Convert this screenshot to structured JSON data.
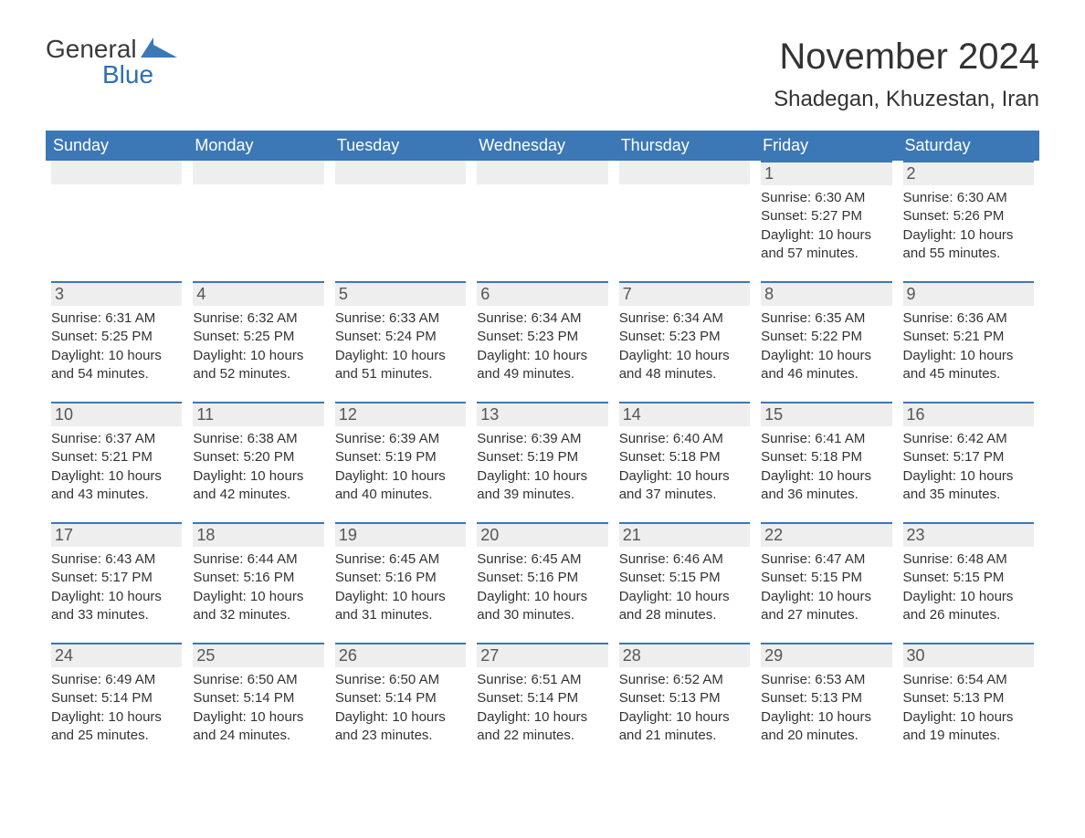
{
  "logo": {
    "general": "General",
    "blue": "Blue",
    "flag_color": "#3b78b5"
  },
  "title": "November 2024",
  "location": "Shadegan, Khuzestan, Iran",
  "day_headers": [
    "Sunday",
    "Monday",
    "Tuesday",
    "Wednesday",
    "Thursday",
    "Friday",
    "Saturday"
  ],
  "style": {
    "header_bg": "#3b78b5",
    "header_text": "#ffffff",
    "daynum_bg": "#eeeeee",
    "daynum_border": "#3b78b5",
    "body_text": "#333333",
    "page_bg": "#ffffff",
    "font_size_title": 40,
    "font_size_location": 24,
    "font_size_dayhead": 18,
    "font_size_daynum": 18,
    "font_size_body": 15
  },
  "weeks": [
    [
      null,
      null,
      null,
      null,
      null,
      {
        "num": "1",
        "sunrise": "Sunrise: 6:30 AM",
        "sunset": "Sunset: 5:27 PM",
        "daylight1": "Daylight: 10 hours",
        "daylight2": "and 57 minutes."
      },
      {
        "num": "2",
        "sunrise": "Sunrise: 6:30 AM",
        "sunset": "Sunset: 5:26 PM",
        "daylight1": "Daylight: 10 hours",
        "daylight2": "and 55 minutes."
      }
    ],
    [
      {
        "num": "3",
        "sunrise": "Sunrise: 6:31 AM",
        "sunset": "Sunset: 5:25 PM",
        "daylight1": "Daylight: 10 hours",
        "daylight2": "and 54 minutes."
      },
      {
        "num": "4",
        "sunrise": "Sunrise: 6:32 AM",
        "sunset": "Sunset: 5:25 PM",
        "daylight1": "Daylight: 10 hours",
        "daylight2": "and 52 minutes."
      },
      {
        "num": "5",
        "sunrise": "Sunrise: 6:33 AM",
        "sunset": "Sunset: 5:24 PM",
        "daylight1": "Daylight: 10 hours",
        "daylight2": "and 51 minutes."
      },
      {
        "num": "6",
        "sunrise": "Sunrise: 6:34 AM",
        "sunset": "Sunset: 5:23 PM",
        "daylight1": "Daylight: 10 hours",
        "daylight2": "and 49 minutes."
      },
      {
        "num": "7",
        "sunrise": "Sunrise: 6:34 AM",
        "sunset": "Sunset: 5:23 PM",
        "daylight1": "Daylight: 10 hours",
        "daylight2": "and 48 minutes."
      },
      {
        "num": "8",
        "sunrise": "Sunrise: 6:35 AM",
        "sunset": "Sunset: 5:22 PM",
        "daylight1": "Daylight: 10 hours",
        "daylight2": "and 46 minutes."
      },
      {
        "num": "9",
        "sunrise": "Sunrise: 6:36 AM",
        "sunset": "Sunset: 5:21 PM",
        "daylight1": "Daylight: 10 hours",
        "daylight2": "and 45 minutes."
      }
    ],
    [
      {
        "num": "10",
        "sunrise": "Sunrise: 6:37 AM",
        "sunset": "Sunset: 5:21 PM",
        "daylight1": "Daylight: 10 hours",
        "daylight2": "and 43 minutes."
      },
      {
        "num": "11",
        "sunrise": "Sunrise: 6:38 AM",
        "sunset": "Sunset: 5:20 PM",
        "daylight1": "Daylight: 10 hours",
        "daylight2": "and 42 minutes."
      },
      {
        "num": "12",
        "sunrise": "Sunrise: 6:39 AM",
        "sunset": "Sunset: 5:19 PM",
        "daylight1": "Daylight: 10 hours",
        "daylight2": "and 40 minutes."
      },
      {
        "num": "13",
        "sunrise": "Sunrise: 6:39 AM",
        "sunset": "Sunset: 5:19 PM",
        "daylight1": "Daylight: 10 hours",
        "daylight2": "and 39 minutes."
      },
      {
        "num": "14",
        "sunrise": "Sunrise: 6:40 AM",
        "sunset": "Sunset: 5:18 PM",
        "daylight1": "Daylight: 10 hours",
        "daylight2": "and 37 minutes."
      },
      {
        "num": "15",
        "sunrise": "Sunrise: 6:41 AM",
        "sunset": "Sunset: 5:18 PM",
        "daylight1": "Daylight: 10 hours",
        "daylight2": "and 36 minutes."
      },
      {
        "num": "16",
        "sunrise": "Sunrise: 6:42 AM",
        "sunset": "Sunset: 5:17 PM",
        "daylight1": "Daylight: 10 hours",
        "daylight2": "and 35 minutes."
      }
    ],
    [
      {
        "num": "17",
        "sunrise": "Sunrise: 6:43 AM",
        "sunset": "Sunset: 5:17 PM",
        "daylight1": "Daylight: 10 hours",
        "daylight2": "and 33 minutes."
      },
      {
        "num": "18",
        "sunrise": "Sunrise: 6:44 AM",
        "sunset": "Sunset: 5:16 PM",
        "daylight1": "Daylight: 10 hours",
        "daylight2": "and 32 minutes."
      },
      {
        "num": "19",
        "sunrise": "Sunrise: 6:45 AM",
        "sunset": "Sunset: 5:16 PM",
        "daylight1": "Daylight: 10 hours",
        "daylight2": "and 31 minutes."
      },
      {
        "num": "20",
        "sunrise": "Sunrise: 6:45 AM",
        "sunset": "Sunset: 5:16 PM",
        "daylight1": "Daylight: 10 hours",
        "daylight2": "and 30 minutes."
      },
      {
        "num": "21",
        "sunrise": "Sunrise: 6:46 AM",
        "sunset": "Sunset: 5:15 PM",
        "daylight1": "Daylight: 10 hours",
        "daylight2": "and 28 minutes."
      },
      {
        "num": "22",
        "sunrise": "Sunrise: 6:47 AM",
        "sunset": "Sunset: 5:15 PM",
        "daylight1": "Daylight: 10 hours",
        "daylight2": "and 27 minutes."
      },
      {
        "num": "23",
        "sunrise": "Sunrise: 6:48 AM",
        "sunset": "Sunset: 5:15 PM",
        "daylight1": "Daylight: 10 hours",
        "daylight2": "and 26 minutes."
      }
    ],
    [
      {
        "num": "24",
        "sunrise": "Sunrise: 6:49 AM",
        "sunset": "Sunset: 5:14 PM",
        "daylight1": "Daylight: 10 hours",
        "daylight2": "and 25 minutes."
      },
      {
        "num": "25",
        "sunrise": "Sunrise: 6:50 AM",
        "sunset": "Sunset: 5:14 PM",
        "daylight1": "Daylight: 10 hours",
        "daylight2": "and 24 minutes."
      },
      {
        "num": "26",
        "sunrise": "Sunrise: 6:50 AM",
        "sunset": "Sunset: 5:14 PM",
        "daylight1": "Daylight: 10 hours",
        "daylight2": "and 23 minutes."
      },
      {
        "num": "27",
        "sunrise": "Sunrise: 6:51 AM",
        "sunset": "Sunset: 5:14 PM",
        "daylight1": "Daylight: 10 hours",
        "daylight2": "and 22 minutes."
      },
      {
        "num": "28",
        "sunrise": "Sunrise: 6:52 AM",
        "sunset": "Sunset: 5:13 PM",
        "daylight1": "Daylight: 10 hours",
        "daylight2": "and 21 minutes."
      },
      {
        "num": "29",
        "sunrise": "Sunrise: 6:53 AM",
        "sunset": "Sunset: 5:13 PM",
        "daylight1": "Daylight: 10 hours",
        "daylight2": "and 20 minutes."
      },
      {
        "num": "30",
        "sunrise": "Sunrise: 6:54 AM",
        "sunset": "Sunset: 5:13 PM",
        "daylight1": "Daylight: 10 hours",
        "daylight2": "and 19 minutes."
      }
    ]
  ]
}
